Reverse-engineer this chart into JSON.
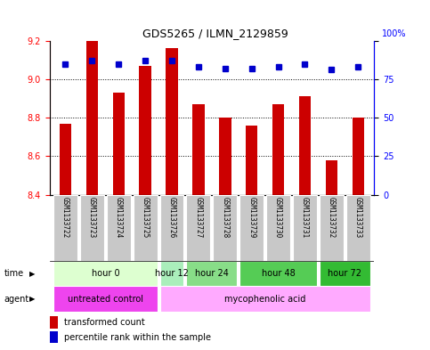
{
  "title": "GDS5265 / ILMN_2129859",
  "samples": [
    "GSM1133722",
    "GSM1133723",
    "GSM1133724",
    "GSM1133725",
    "GSM1133726",
    "GSM1133727",
    "GSM1133728",
    "GSM1133729",
    "GSM1133730",
    "GSM1133731",
    "GSM1133732",
    "GSM1133733"
  ],
  "bar_values": [
    8.77,
    9.2,
    8.93,
    9.07,
    9.16,
    8.87,
    8.8,
    8.76,
    8.87,
    8.91,
    8.58,
    8.8
  ],
  "percentile_values": [
    85,
    87,
    85,
    87,
    87,
    83,
    82,
    82,
    83,
    85,
    81,
    83
  ],
  "bar_bottom": 8.4,
  "ylim": [
    8.4,
    9.2
  ],
  "yticks": [
    8.4,
    8.6,
    8.8,
    9.0,
    9.2
  ],
  "right_ylim": [
    0,
    100
  ],
  "right_yticks": [
    0,
    25,
    50,
    75,
    100
  ],
  "bar_color": "#cc0000",
  "percentile_color": "#0000cc",
  "bar_width": 0.45,
  "bg_color": "#ffffff",
  "time_groups": [
    {
      "label": "hour 0",
      "start": 0,
      "end": 3,
      "color": "#ddffd0"
    },
    {
      "label": "hour 12",
      "start": 4,
      "end": 4,
      "color": "#aaeebb"
    },
    {
      "label": "hour 24",
      "start": 5,
      "end": 6,
      "color": "#88dd88"
    },
    {
      "label": "hour 48",
      "start": 7,
      "end": 9,
      "color": "#55cc55"
    },
    {
      "label": "hour 72",
      "start": 10,
      "end": 11,
      "color": "#33bb33"
    }
  ],
  "agent_colors": [
    "#ee44ee",
    "#ffaaff"
  ],
  "agent_groups": [
    {
      "label": "untreated control",
      "start": 0,
      "end": 3
    },
    {
      "label": "mycophenolic acid",
      "start": 4,
      "end": 11
    }
  ],
  "legend_bar_label": "transformed count",
  "legend_pct_label": "percentile rank within the sample",
  "sample_box_color": "#c8c8c8"
}
